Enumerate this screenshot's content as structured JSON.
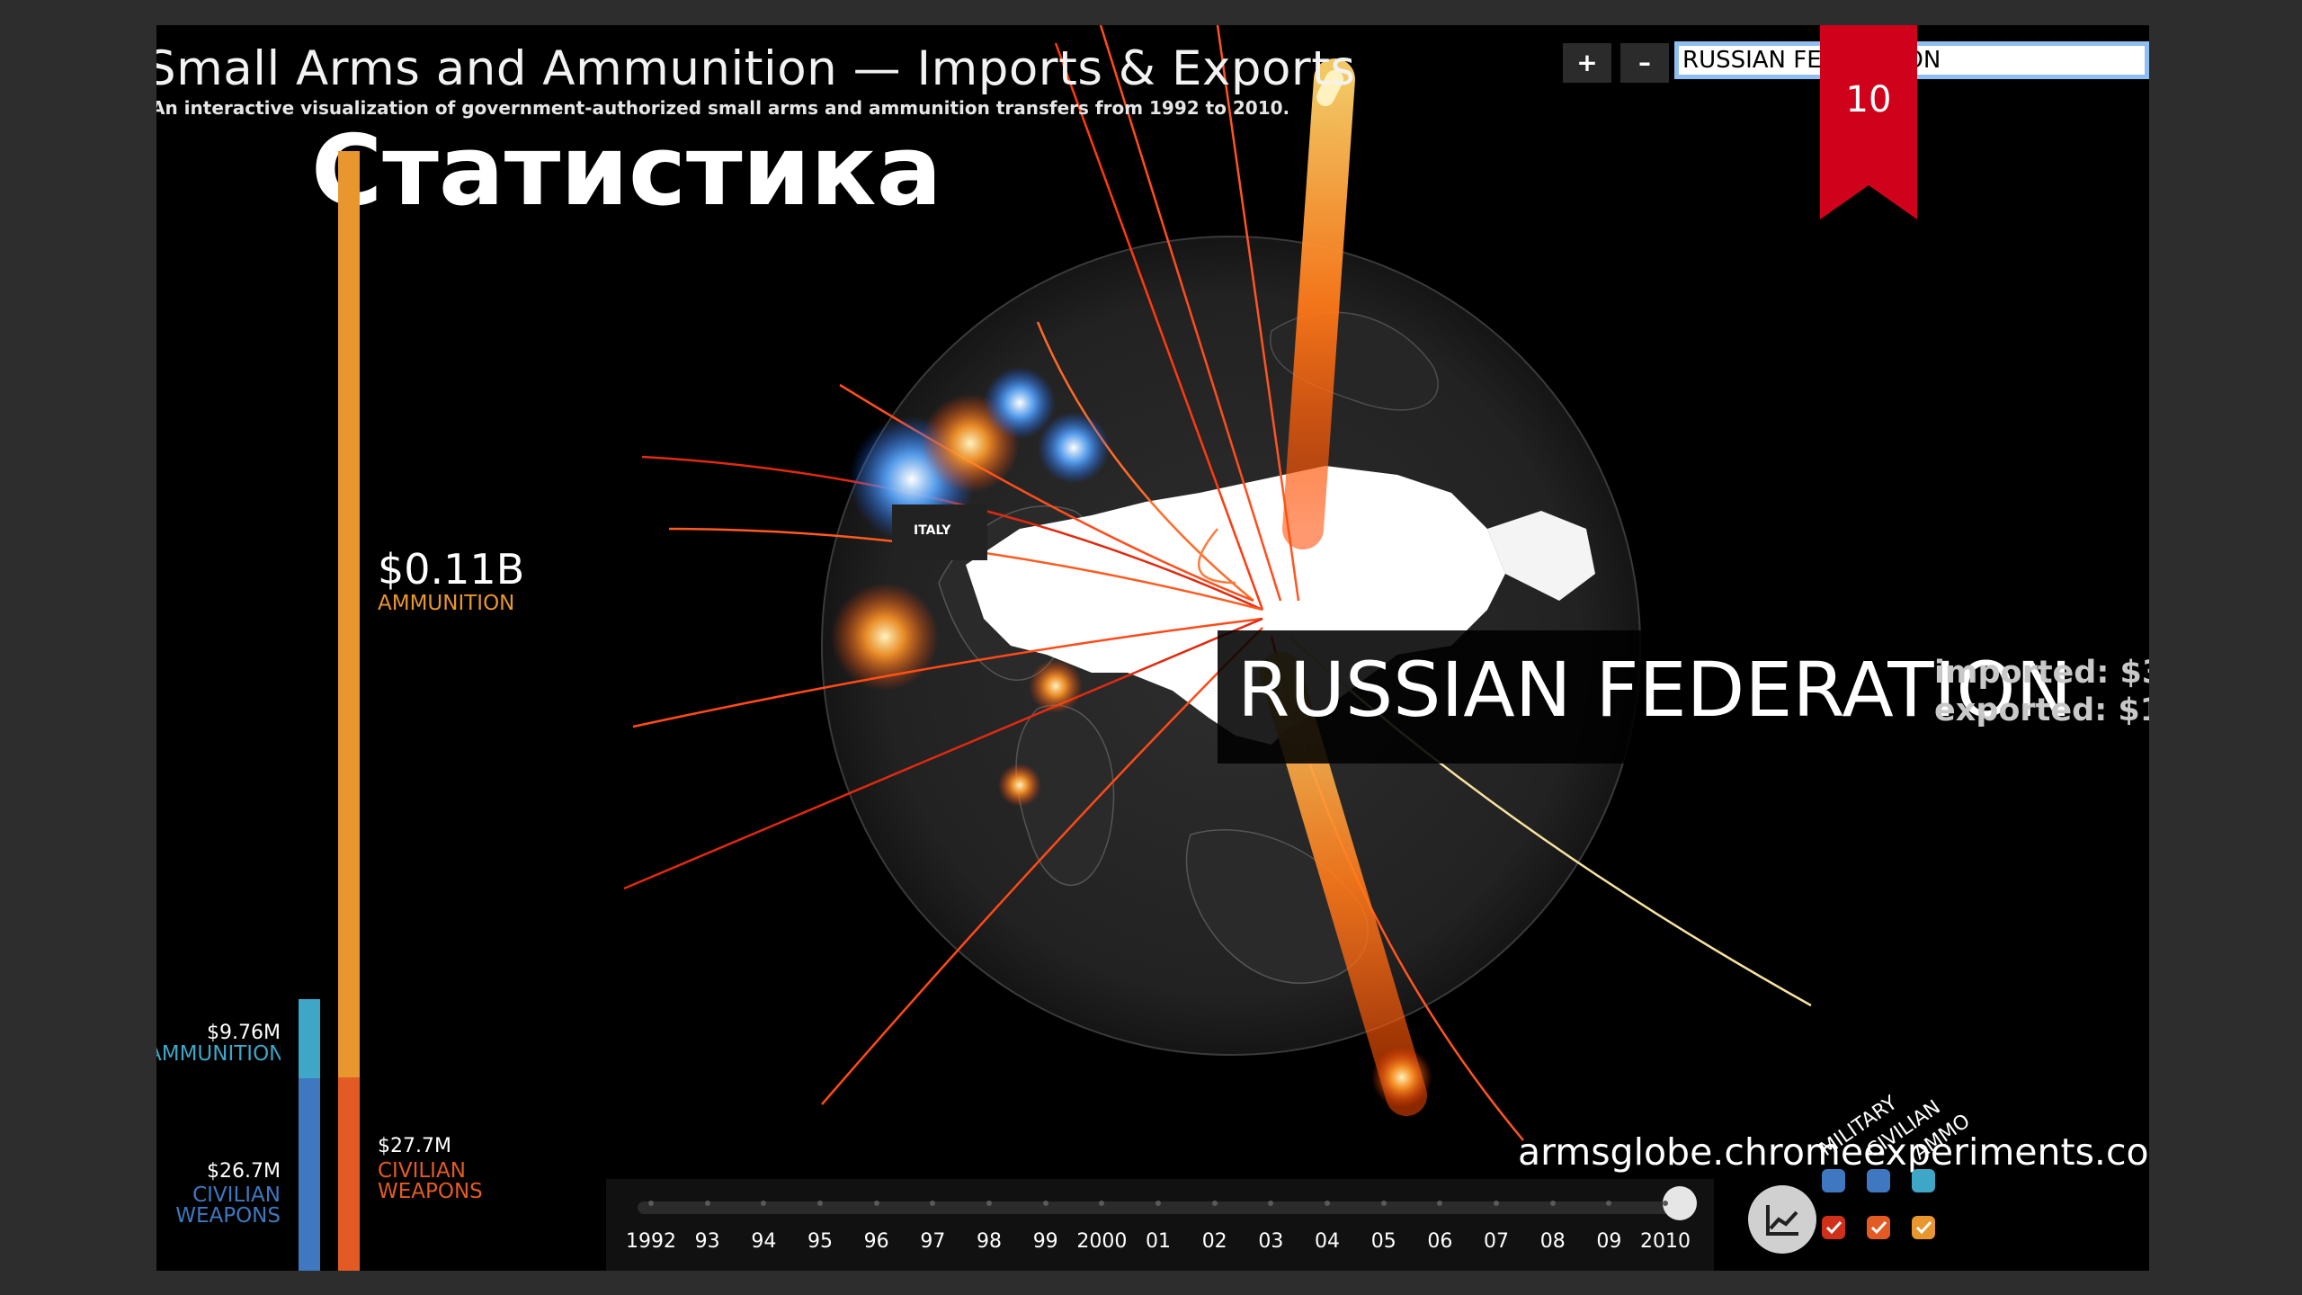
{
  "app": {
    "title": "Small Arms and Ammunition — Imports & Exports",
    "subtitle": "An interactive visualization of government-authorized small arms and ammunition transfers from 1992 to 2010.",
    "overlay_heading": "Статистика",
    "slide_number": "10",
    "url": "armsglobe.chromeexperiments.com"
  },
  "controls": {
    "zoom_in_label": "+",
    "zoom_out_label": "–",
    "search_value": "RUSSIAN FEDERATION"
  },
  "left_chart": {
    "big_value": "$0.11B",
    "big_category": "AMMUNITION",
    "import_ammo_value": "$9.76M",
    "import_ammo_label": "AMMUNITION",
    "import_weapons_value": "$26.7M",
    "import_weapons_label": [
      "CIVILIAN",
      "WEAPONS"
    ],
    "export_civ_value": "$27.7M",
    "export_civ_label": [
      "CIVILIAN",
      "WEAPONS"
    ]
  },
  "globe": {
    "country_label": "ITALY",
    "selected_country": "RUSSIAN FEDERATION",
    "imported_text": "imported: $3",
    "exported_text": "exported: $1"
  },
  "timeline": {
    "years": [
      "1992",
      "93",
      "94",
      "95",
      "96",
      "97",
      "98",
      "99",
      "2000",
      "01",
      "02",
      "03",
      "04",
      "05",
      "06",
      "07",
      "08",
      "09",
      "2010"
    ],
    "selected_year": "2010"
  },
  "legend": {
    "labels": [
      "MILITARY",
      "CIVILIAN",
      "AMMO"
    ]
  },
  "colors": {
    "accent_orange": "#e8962e",
    "export_red": "#e35b24",
    "import_blue": "#3f78c0",
    "import_cyan": "#3ea6c7",
    "badge_red": "#d0021b"
  }
}
